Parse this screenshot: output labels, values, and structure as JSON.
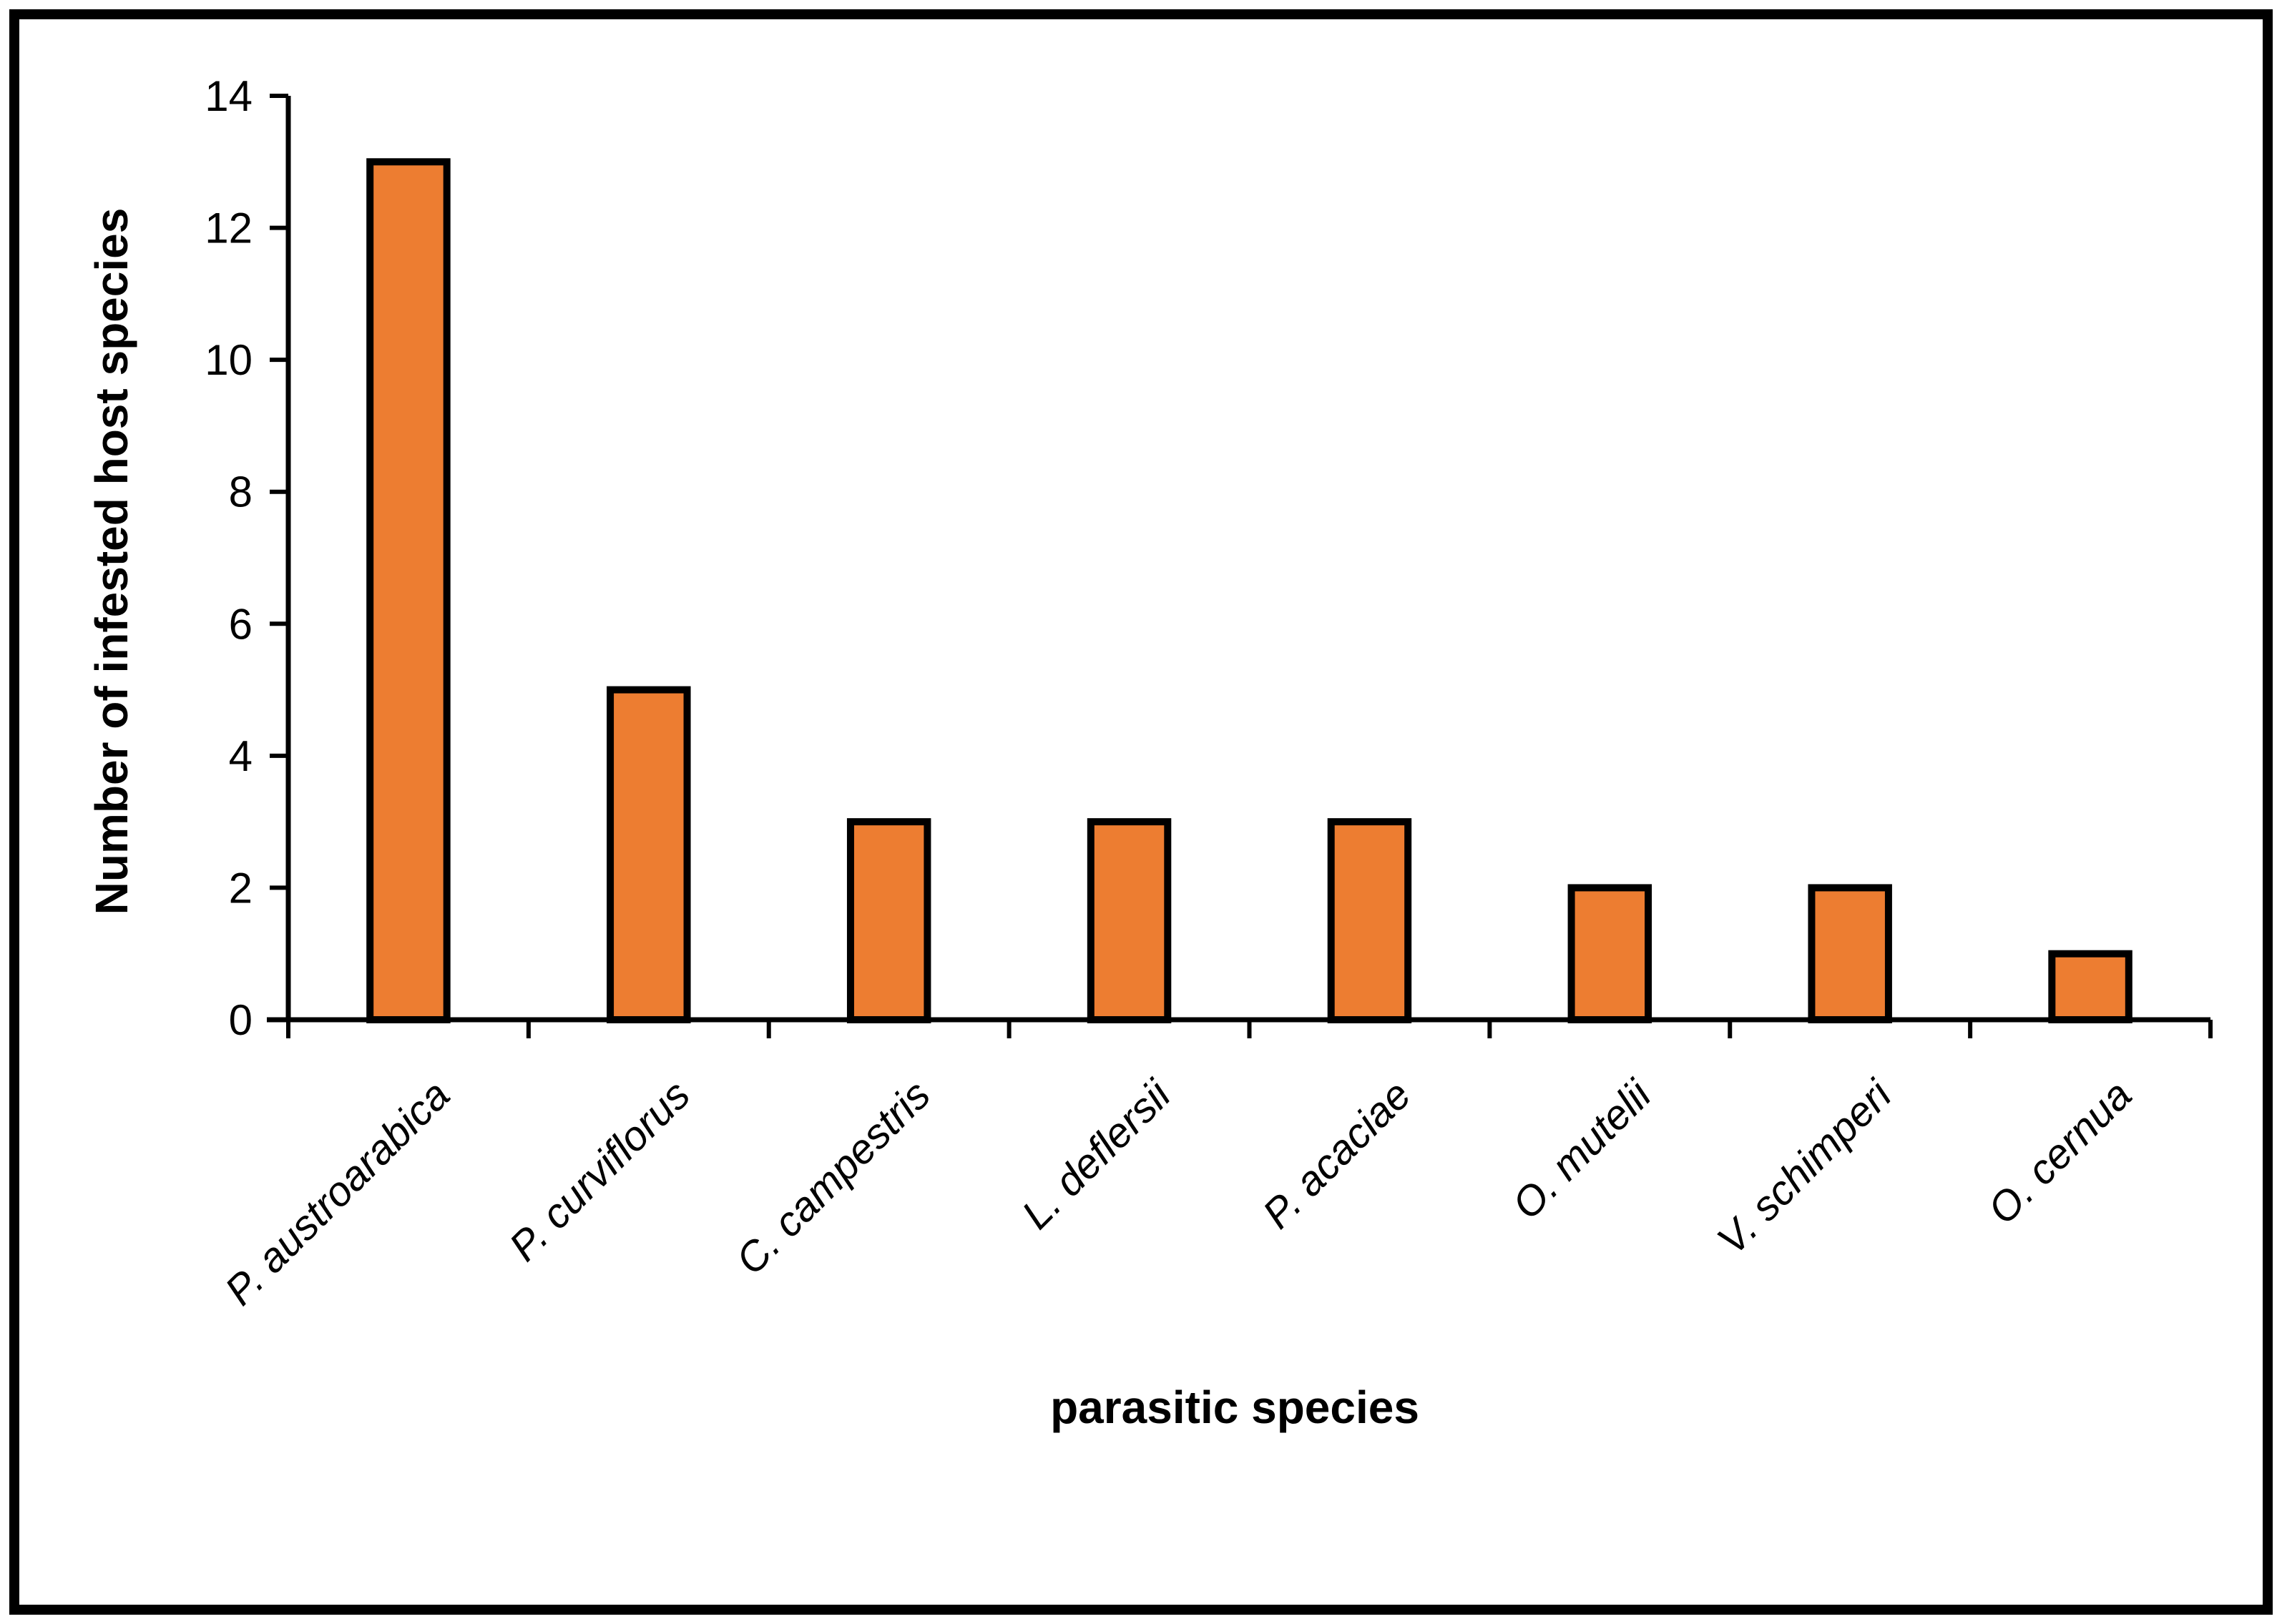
{
  "chart_data": {
    "type": "bar",
    "title": "",
    "xlabel": "parasitic species",
    "ylabel": "Number of infested  host species",
    "categories": [
      "P. austroarabica",
      "P. curviflorus",
      "C. campestris",
      "L. deflersii",
      "P. acaciae",
      "O. mutelii",
      "V. schimperi",
      "O. cernua"
    ],
    "values": [
      13,
      5,
      3,
      3,
      3,
      2,
      2,
      1
    ],
    "ylim": [
      0,
      14
    ],
    "yticks": [
      0,
      2,
      4,
      6,
      8,
      10,
      12,
      14
    ],
    "grid": false,
    "legend": "none",
    "colors": {
      "bar_fill": "#ED7D31",
      "bar_stroke": "#000000",
      "axis": "#000000",
      "frame": "#000000",
      "background": "#ffffff"
    }
  }
}
